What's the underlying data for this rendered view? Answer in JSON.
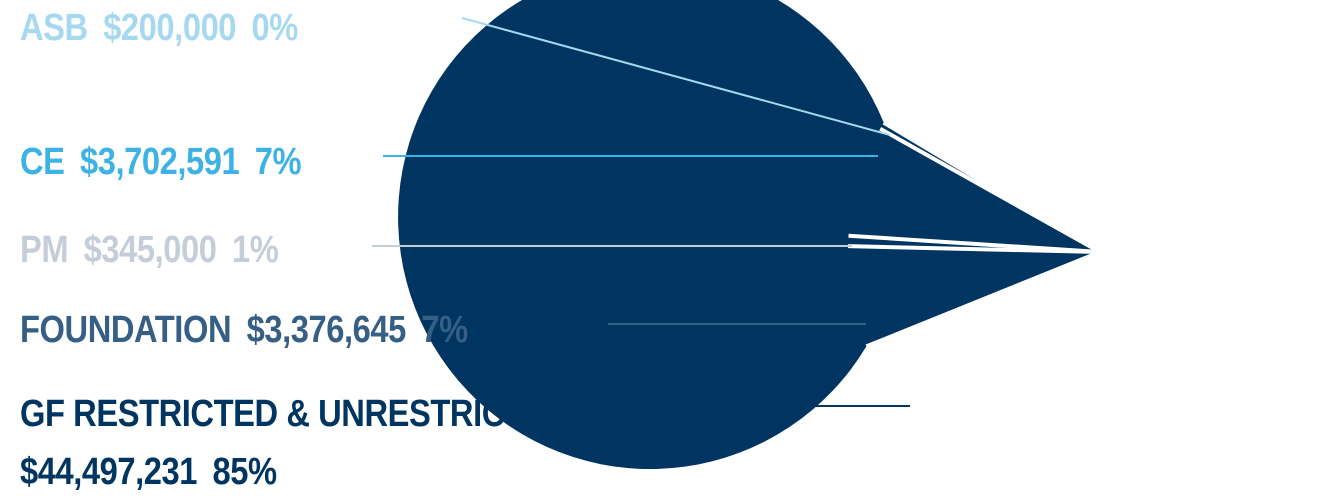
{
  "chart_data": {
    "type": "pie",
    "slices": [
      {
        "label": "ASB",
        "amount": "$200,000",
        "percent_label": "0%",
        "value": 200000,
        "color": "#a6d9f0"
      },
      {
        "label": "CE",
        "amount": "$3,702,591",
        "percent_label": "7%",
        "value": 3702591,
        "color": "#3db3e5"
      },
      {
        "label": "PM",
        "amount": "$345,000",
        "percent_label": "1%",
        "value": 345000,
        "color": "#c5cdd8"
      },
      {
        "label": "FOUNDATION",
        "amount": "$3,376,645",
        "percent_label": "7%",
        "value": 3376645,
        "color": "#365f85"
      },
      {
        "label": "GF RESTRICTED & UNRESTRICTED",
        "amount": "$44,497,231",
        "percent_label": "85%",
        "value": 44497231,
        "color": "#003562"
      }
    ]
  }
}
